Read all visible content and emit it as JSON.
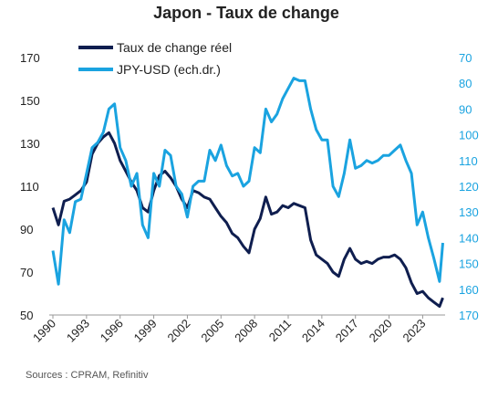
{
  "chart_data": {
    "type": "line",
    "title": "Japon - Taux de change",
    "source": "Sources : CPRAM, Refinitiv",
    "x": [
      1990,
      1990.5,
      1991,
      1991.5,
      1992,
      1992.5,
      1993,
      1993.5,
      1994,
      1994.5,
      1995,
      1995.5,
      1996,
      1996.5,
      1997,
      1997.5,
      1998,
      1998.5,
      1999,
      1999.5,
      2000,
      2000.5,
      2001,
      2001.5,
      2002,
      2002.5,
      2003,
      2003.5,
      2004,
      2004.5,
      2005,
      2005.5,
      2006,
      2006.5,
      2007,
      2007.5,
      2008,
      2008.5,
      2009,
      2009.5,
      2010,
      2010.5,
      2011,
      2011.5,
      2012,
      2012.5,
      2013,
      2013.5,
      2014,
      2014.5,
      2015,
      2015.5,
      2016,
      2016.5,
      2017,
      2017.5,
      2018,
      2018.5,
      2019,
      2019.5,
      2020,
      2020.5,
      2021,
      2021.5,
      2022,
      2022.5,
      2023,
      2023.5,
      2024,
      2024.5,
      2024.8
    ],
    "series": [
      {
        "name": "Taux de change réel",
        "color": "#0f1e4f",
        "axis": "y",
        "values": [
          100,
          92,
          103,
          104,
          106,
          108,
          112,
          125,
          130,
          133,
          135,
          130,
          122,
          117,
          112,
          108,
          100,
          98,
          108,
          115,
          117,
          114,
          110,
          104,
          100,
          108,
          107,
          105,
          104,
          100,
          96,
          93,
          88,
          86,
          82,
          79,
          90,
          95,
          105,
          97,
          98,
          101,
          100,
          102,
          101,
          100,
          85,
          78,
          76,
          74,
          70,
          68,
          76,
          81,
          76,
          74,
          75,
          74,
          76,
          77,
          77,
          78,
          76,
          72,
          65,
          60,
          61,
          58,
          56,
          54,
          58
        ]
      },
      {
        "name": "JPY-USD (ech.dr.)",
        "color": "#1aa3e0",
        "axis": "y2",
        "values": [
          145,
          158,
          133,
          138,
          126,
          125,
          115,
          105,
          103,
          99,
          90,
          88,
          105,
          110,
          120,
          115,
          135,
          140,
          115,
          120,
          106,
          108,
          120,
          123,
          132,
          120,
          118,
          118,
          106,
          110,
          104,
          112,
          116,
          115,
          120,
          118,
          105,
          107,
          90,
          95,
          92,
          86,
          82,
          78,
          79,
          79,
          90,
          98,
          102,
          102,
          120,
          124,
          115,
          102,
          113,
          112,
          110,
          111,
          110,
          108,
          108,
          106,
          104,
          110,
          115,
          135,
          130,
          140,
          148,
          157,
          142
        ]
      }
    ],
    "xlim": [
      1990,
      2025
    ],
    "xticks": [
      1990,
      1993,
      1996,
      1999,
      2002,
      2005,
      2008,
      2011,
      2014,
      2017,
      2020,
      2023
    ],
    "ylim": [
      50,
      170
    ],
    "yticks": [
      50,
      70,
      90,
      110,
      130,
      150,
      170
    ],
    "y2lim": [
      170,
      70
    ],
    "y2ticks": [
      70,
      80,
      90,
      100,
      110,
      120,
      130,
      140,
      150,
      160,
      170
    ],
    "legend": "top-left"
  }
}
